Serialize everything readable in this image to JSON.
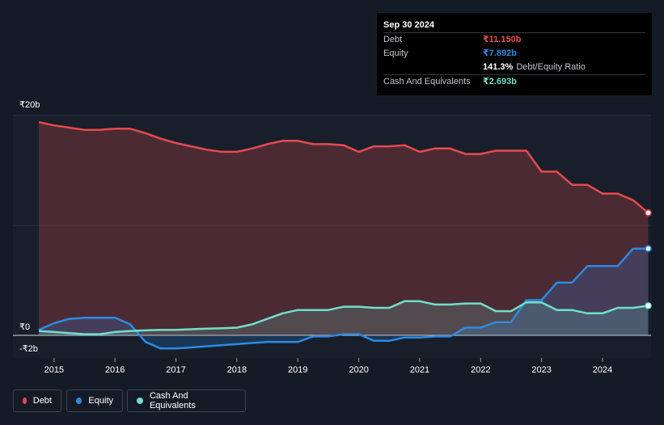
{
  "tooltip": {
    "date": "Sep 30 2024",
    "rows": [
      {
        "label": "Debt",
        "value": "₹11.150b",
        "color": "#e64a4e"
      },
      {
        "label": "Equity",
        "value": "₹7.892b",
        "color": "#2b8ae6"
      },
      {
        "ratio_value": "141.3%",
        "ratio_text": "Debt/Equity Ratio"
      },
      {
        "label": "Cash And Equivalents",
        "value": "₹2.693b",
        "color": "#6fe0c8"
      }
    ]
  },
  "legend": [
    {
      "label": "Debt",
      "color": "#e64a4e"
    },
    {
      "label": "Equity",
      "color": "#2b8ae6"
    },
    {
      "label": "Cash And Equivalents",
      "color": "#6fe0c8"
    }
  ],
  "chart_data": {
    "type": "area",
    "y_tick_labels": [
      "₹20b",
      "₹0",
      "-₹2b"
    ],
    "x_tick_labels": [
      "2015",
      "2016",
      "2017",
      "2018",
      "2019",
      "2020",
      "2021",
      "2022",
      "2023",
      "2024"
    ],
    "ylim": [
      -2,
      20
    ],
    "xlim": [
      2014.65,
      2024.75
    ],
    "grid": true,
    "series": [
      {
        "name": "Debt",
        "color": "#e64a4e",
        "x": [
          2014.75,
          2015.0,
          2015.25,
          2015.5,
          2015.75,
          2016.0,
          2016.25,
          2016.5,
          2016.75,
          2017.0,
          2017.25,
          2017.5,
          2017.75,
          2018.0,
          2018.25,
          2018.5,
          2018.75,
          2019.0,
          2019.25,
          2019.5,
          2019.75,
          2020.0,
          2020.25,
          2020.5,
          2020.75,
          2021.0,
          2021.25,
          2021.5,
          2021.75,
          2022.0,
          2022.25,
          2022.5,
          2022.75,
          2023.0,
          2023.25,
          2023.5,
          2023.75,
          2024.0,
          2024.25,
          2024.5,
          2024.75
        ],
        "values": [
          19.4,
          19.1,
          18.9,
          18.7,
          18.7,
          18.8,
          18.8,
          18.4,
          17.9,
          17.5,
          17.2,
          16.9,
          16.7,
          16.7,
          17.0,
          17.4,
          17.7,
          17.7,
          17.4,
          17.4,
          17.3,
          16.7,
          17.2,
          17.2,
          17.3,
          16.7,
          17.0,
          17.0,
          16.5,
          16.5,
          16.8,
          16.8,
          16.8,
          14.9,
          14.9,
          13.7,
          13.7,
          12.9,
          12.9,
          12.3,
          11.15
        ]
      },
      {
        "name": "Equity",
        "color": "#2b8ae6",
        "x": [
          2014.75,
          2015.0,
          2015.25,
          2015.5,
          2015.75,
          2016.0,
          2016.25,
          2016.5,
          2016.75,
          2017.0,
          2017.25,
          2017.5,
          2017.75,
          2018.0,
          2018.25,
          2018.5,
          2018.75,
          2019.0,
          2019.25,
          2019.5,
          2019.75,
          2020.0,
          2020.25,
          2020.5,
          2020.75,
          2021.0,
          2021.25,
          2021.5,
          2021.75,
          2022.0,
          2022.25,
          2022.5,
          2022.75,
          2023.0,
          2023.25,
          2023.5,
          2023.75,
          2024.0,
          2024.25,
          2024.5,
          2024.75
        ],
        "values": [
          0.5,
          1.1,
          1.5,
          1.6,
          1.6,
          1.6,
          1.0,
          -0.6,
          -1.2,
          -1.2,
          -1.1,
          -1.0,
          -0.9,
          -0.8,
          -0.7,
          -0.6,
          -0.6,
          -0.6,
          -0.1,
          -0.1,
          0.1,
          0.1,
          -0.5,
          -0.5,
          -0.2,
          -0.2,
          -0.1,
          -0.1,
          0.7,
          0.7,
          1.2,
          1.2,
          3.2,
          3.2,
          4.8,
          4.8,
          6.3,
          6.3,
          6.3,
          7.892,
          7.892
        ]
      },
      {
        "name": "Cash And Equivalents",
        "color": "#6fe0c8",
        "x": [
          2014.75,
          2015.0,
          2015.25,
          2015.5,
          2015.75,
          2016.0,
          2016.25,
          2016.5,
          2016.75,
          2017.0,
          2017.25,
          2017.5,
          2017.75,
          2018.0,
          2018.25,
          2018.5,
          2018.75,
          2019.0,
          2019.25,
          2019.5,
          2019.75,
          2020.0,
          2020.25,
          2020.5,
          2020.75,
          2021.0,
          2021.25,
          2021.5,
          2021.75,
          2022.0,
          2022.25,
          2022.5,
          2022.75,
          2023.0,
          2023.25,
          2023.5,
          2023.75,
          2024.0,
          2024.25,
          2024.5,
          2024.75
        ],
        "values": [
          0.4,
          0.3,
          0.2,
          0.1,
          0.1,
          0.3,
          0.4,
          0.45,
          0.5,
          0.5,
          0.55,
          0.6,
          0.65,
          0.7,
          1.0,
          1.5,
          2.0,
          2.3,
          2.3,
          2.3,
          2.6,
          2.6,
          2.5,
          2.5,
          3.1,
          3.1,
          2.8,
          2.8,
          2.9,
          2.9,
          2.2,
          2.2,
          3.0,
          3.0,
          2.3,
          2.3,
          2.0,
          2.0,
          2.5,
          2.5,
          2.693
        ]
      }
    ]
  }
}
